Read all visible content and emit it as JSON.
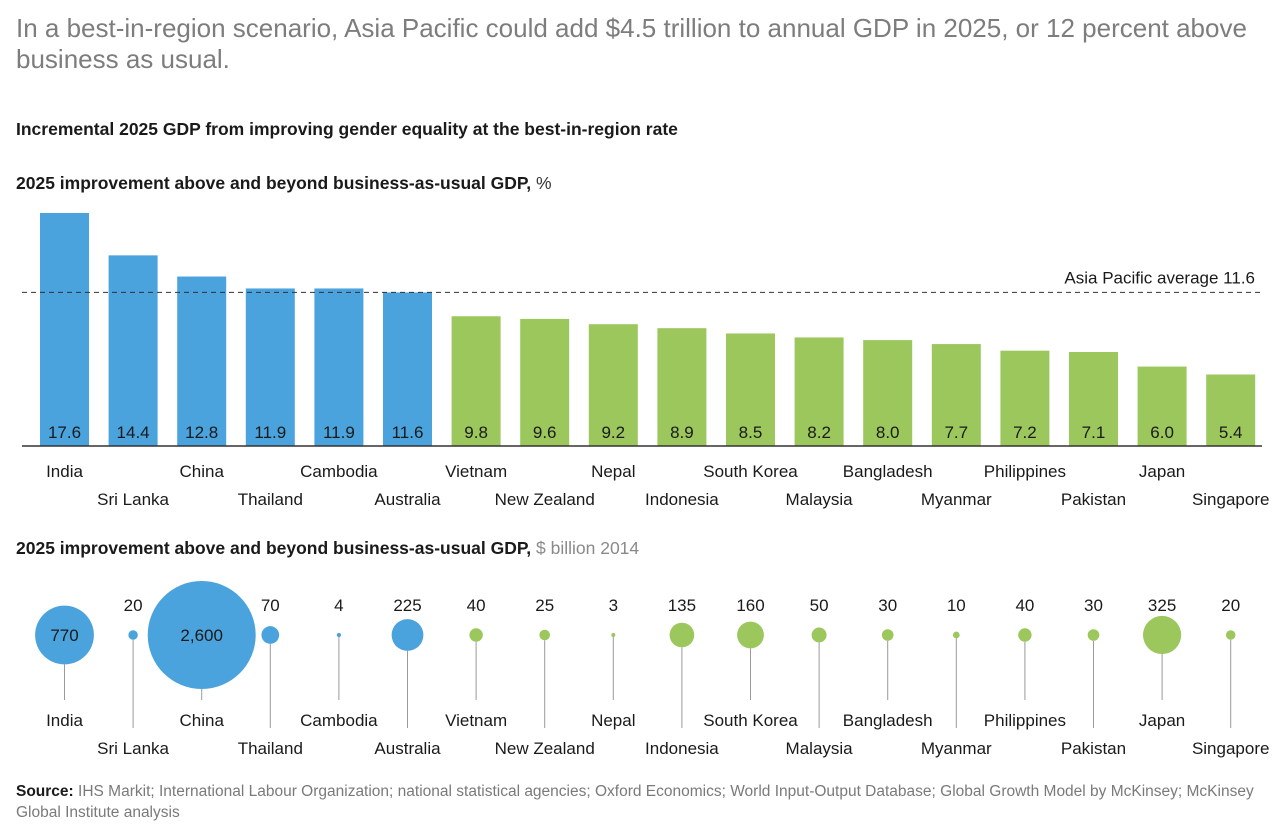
{
  "headline": "In a best-in-region scenario, Asia Pacific could add $4.5 trillion to annual GDP in 2025, or 12 percent above business as usual.",
  "chart_title": "Incremental 2025 GDP from improving gender equality at the best-in-region rate",
  "source": {
    "label": "Source:",
    "text": "IHS Markit; International Labour Organization; national statistical agencies; Oxford Economics; World Input-Output Database; Global Growth Model by McKinsey; McKinsey Global Institute analysis"
  },
  "colors": {
    "blue": "#4aa3dc",
    "green": "#9cc75d",
    "axis": "#333333",
    "leader": "#9a9a9a"
  },
  "chart_data": [
    {
      "type": "bar",
      "title": "2025 improvement above and beyond business-as-usual GDP,",
      "unit": "%",
      "categories": [
        "India",
        "Sri Lanka",
        "China",
        "Thailand",
        "Cambodia",
        "Australia",
        "Vietnam",
        "New Zealand",
        "Nepal",
        "Indonesia",
        "South Korea",
        "Malaysia",
        "Bangladesh",
        "Myanmar",
        "Philippines",
        "Pakistan",
        "Japan",
        "Singapore"
      ],
      "values": [
        17.6,
        14.4,
        12.8,
        11.9,
        11.9,
        11.6,
        9.8,
        9.6,
        9.2,
        8.9,
        8.5,
        8.2,
        8.0,
        7.7,
        7.2,
        7.1,
        6.0,
        5.4
      ],
      "value_labels": [
        "17.6",
        "14.4",
        "12.8",
        "11.9",
        "11.9",
        "11.6",
        "9.8",
        "9.6",
        "9.2",
        "8.9",
        "8.5",
        "8.2",
        "8.0",
        "7.7",
        "7.2",
        "7.1",
        "6.0",
        "5.4"
      ],
      "groups": [
        "blue",
        "blue",
        "blue",
        "blue",
        "blue",
        "blue",
        "green",
        "green",
        "green",
        "green",
        "green",
        "green",
        "green",
        "green",
        "green",
        "green",
        "green",
        "green"
      ],
      "reference_line": {
        "label": "Asia Pacific average 11.6",
        "value": 11.6,
        "style": "dashed"
      },
      "ylim": [
        0,
        17.6
      ]
    },
    {
      "type": "bubble",
      "title": "2025 improvement above and beyond business-as-usual GDP,",
      "unit": "$ billion 2014",
      "categories": [
        "India",
        "Sri Lanka",
        "China",
        "Thailand",
        "Cambodia",
        "Australia",
        "Vietnam",
        "New Zealand",
        "Nepal",
        "Indonesia",
        "South Korea",
        "Malaysia",
        "Bangladesh",
        "Myanmar",
        "Philippines",
        "Pakistan",
        "Japan",
        "Singapore"
      ],
      "values": [
        770,
        20,
        2600,
        70,
        4,
        225,
        40,
        25,
        3,
        135,
        160,
        50,
        30,
        10,
        40,
        30,
        325,
        20
      ],
      "value_labels": [
        "770",
        "20",
        "2,600",
        "70",
        "4",
        "225",
        "40",
        "25",
        "3",
        "135",
        "160",
        "50",
        "30",
        "10",
        "40",
        "30",
        "325",
        "20"
      ],
      "groups": [
        "blue",
        "blue",
        "blue",
        "blue",
        "blue",
        "blue",
        "green",
        "green",
        "green",
        "green",
        "green",
        "green",
        "green",
        "green",
        "green",
        "green",
        "green",
        "green"
      ]
    }
  ]
}
